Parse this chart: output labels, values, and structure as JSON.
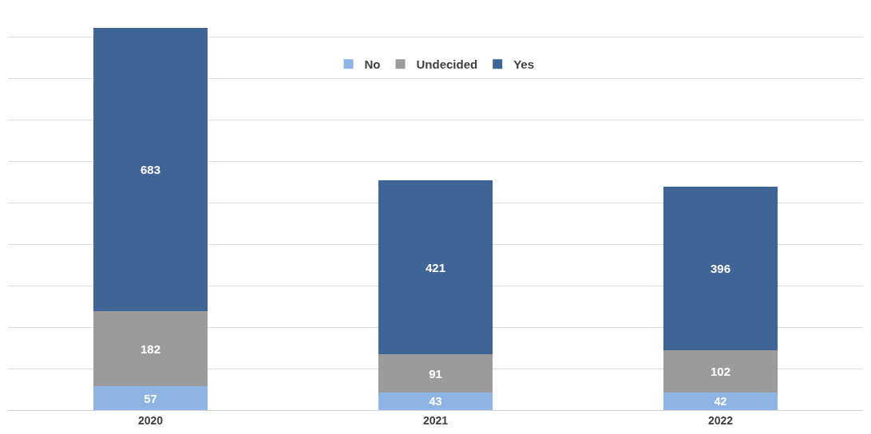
{
  "chart_data": {
    "type": "bar",
    "stacked": true,
    "categories": [
      "2020",
      "2021",
      "2022"
    ],
    "series": [
      {
        "name": "No",
        "color": "#8db4e2",
        "values": [
          57,
          43,
          42
        ]
      },
      {
        "name": "Undecided",
        "color": "#9b9b9b",
        "values": [
          182,
          91,
          102
        ]
      },
      {
        "name": "Yes",
        "color": "#3e6596",
        "values": [
          683,
          421,
          396
        ]
      }
    ],
    "data_labels": true,
    "yticks": [
      {
        "value": 0,
        "label": null
      },
      {
        "value": 100,
        "label": null
      },
      {
        "value": 200,
        "label": null
      },
      {
        "value": 300,
        "label": null
      },
      {
        "value": 400,
        "label": null
      },
      {
        "value": 500,
        "label": null
      },
      {
        "value": 600,
        "label": null
      },
      {
        "value": 700,
        "label": null
      },
      {
        "value": 800,
        "label": null
      },
      {
        "value": 900,
        "label": null
      }
    ],
    "tick_labels": "x",
    "grid": "y",
    "legend": "top"
  }
}
